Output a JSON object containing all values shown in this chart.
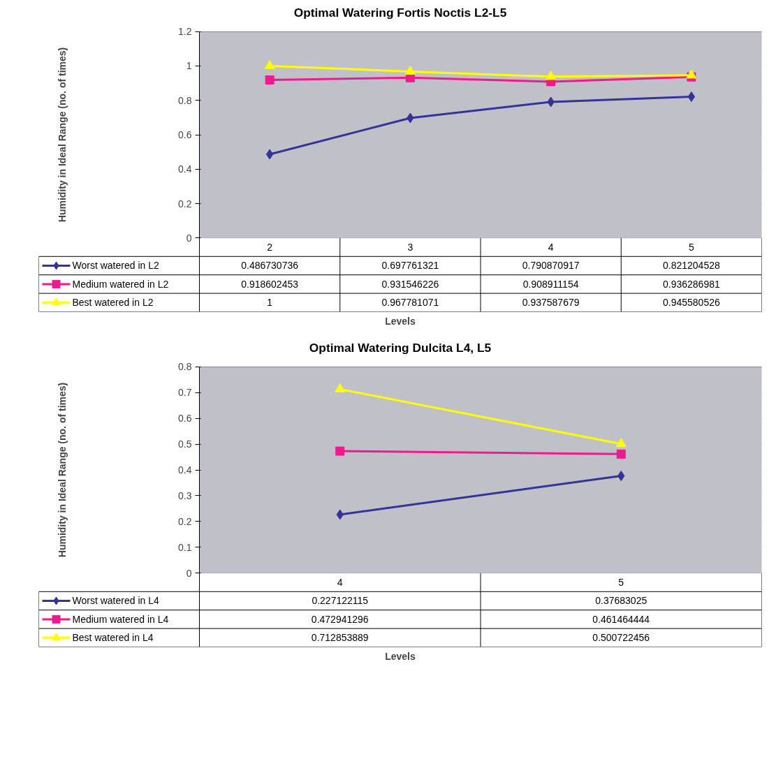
{
  "chart_data": [
    {
      "type": "line",
      "title": "Optimal Watering Fortis Noctis L2-L5",
      "xlabel": "Levels",
      "ylabel": "Humidity in Ideal Range (no. of times)",
      "categories": [
        "2",
        "3",
        "4",
        "5"
      ],
      "ylim": [
        0,
        1.2
      ],
      "yticks": [
        0,
        0.2,
        0.4,
        0.6,
        0.8,
        1,
        1.2
      ],
      "grid": "y",
      "legend": "bottom",
      "series": [
        {
          "name": "Worst watered in L2",
          "color": "#333399",
          "marker": "diamond",
          "values": [
            0.486730736,
            0.697761321,
            0.790870917,
            0.821204528
          ],
          "value_labels": [
            "0.486730736",
            "0.697761321",
            "0.790870917",
            "0.821204528"
          ]
        },
        {
          "name": "Medium watered in L2",
          "color": "#ee1b8f",
          "marker": "square",
          "values": [
            0.918602453,
            0.931546226,
            0.908911154,
            0.936286981
          ],
          "value_labels": [
            "0.918602453",
            "0.931546226",
            "0.908911154",
            "0.936286981"
          ]
        },
        {
          "name": "Best watered in L2",
          "color": "#ffff00",
          "marker": "triangle",
          "values": [
            1,
            0.967781071,
            0.937587679,
            0.945580526
          ],
          "value_labels": [
            "1",
            "0.967781071",
            "0.937587679",
            "0.945580526"
          ]
        }
      ]
    },
    {
      "type": "line",
      "title": "Optimal Watering Dulcita L4, L5",
      "xlabel": "Levels",
      "ylabel": "Humidity in Ideal Range (no. of times)",
      "categories": [
        "4",
        "5"
      ],
      "ylim": [
        0,
        0.8
      ],
      "yticks": [
        0,
        0.1,
        0.2,
        0.3,
        0.4,
        0.5,
        0.6,
        0.7,
        0.8
      ],
      "grid": "y",
      "legend": "bottom",
      "series": [
        {
          "name": "Worst watered in L4",
          "color": "#333399",
          "marker": "diamond",
          "values": [
            0.227122115,
            0.37683025
          ],
          "value_labels": [
            "0.227122115",
            "0.37683025"
          ]
        },
        {
          "name": "Medium watered in L4",
          "color": "#ee1b8f",
          "marker": "square",
          "values": [
            0.472941296,
            0.461464444
          ],
          "value_labels": [
            "0.472941296",
            "0.461464444"
          ]
        },
        {
          "name": "Best watered in L4",
          "color": "#ffff00",
          "marker": "triangle",
          "values": [
            0.712853889,
            0.500722456
          ],
          "value_labels": [
            "0.712853889",
            "0.500722456"
          ]
        }
      ]
    }
  ]
}
